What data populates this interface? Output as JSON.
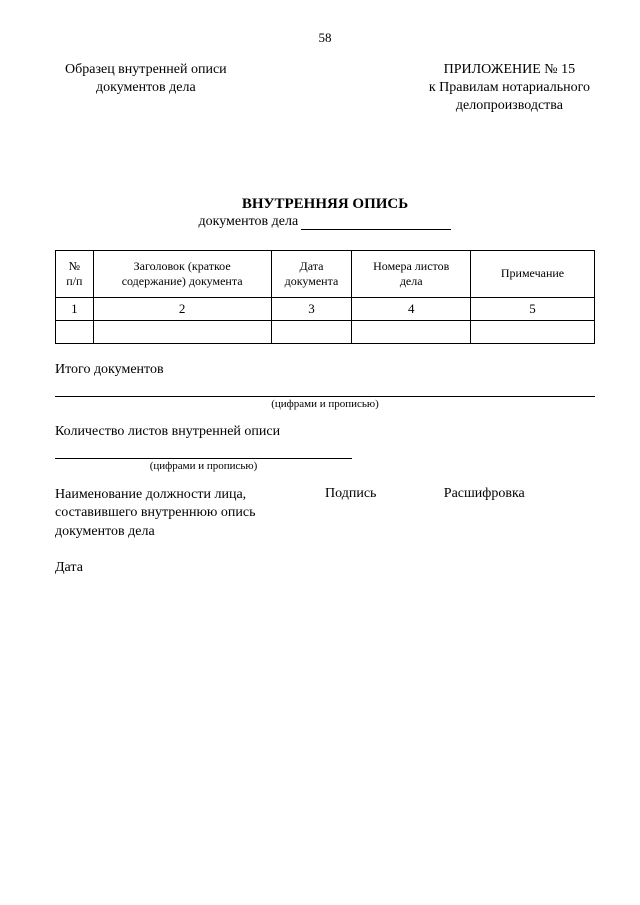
{
  "page_number": "58",
  "header": {
    "left_line1": "Образец внутренней описи",
    "left_line2": "документов дела",
    "right_line1": "ПРИЛОЖЕНИЕ № 15",
    "right_line2": "к Правилам нотариального",
    "right_line3": "делопроизводства"
  },
  "title": {
    "main": "ВНУТРЕННЯЯ ОПИСЬ",
    "sub_prefix": "документов дела"
  },
  "table": {
    "type": "table",
    "columns": [
      {
        "key": "num",
        "label_line1": "№",
        "label_line2": "п/п"
      },
      {
        "key": "title",
        "label_line1": "Заголовок (краткое",
        "label_line2": "содержание) документа"
      },
      {
        "key": "date",
        "label_line1": "Дата",
        "label_line2": "документа"
      },
      {
        "key": "sheets",
        "label_line1": "Номера листов",
        "label_line2": "дела"
      },
      {
        "key": "note",
        "label_line1": "Примечание",
        "label_line2": ""
      }
    ],
    "number_row": [
      "1",
      "2",
      "3",
      "4",
      "5"
    ],
    "border_color": "#000000",
    "background_color": "#ffffff"
  },
  "totals": {
    "total_docs_label": "Итого документов",
    "caption1": "(цифрами и прописью)",
    "sheets_count_label": "Количество листов внутренней описи",
    "caption2": "(цифрами и прописью)"
  },
  "signature": {
    "position_line1": "Наименование должности лица,",
    "position_line2": "составившего внутреннюю опись",
    "position_line3": "документов дела",
    "sign_label": "Подпись",
    "decode_label": "Расшифровка",
    "date_label": "Дата"
  }
}
